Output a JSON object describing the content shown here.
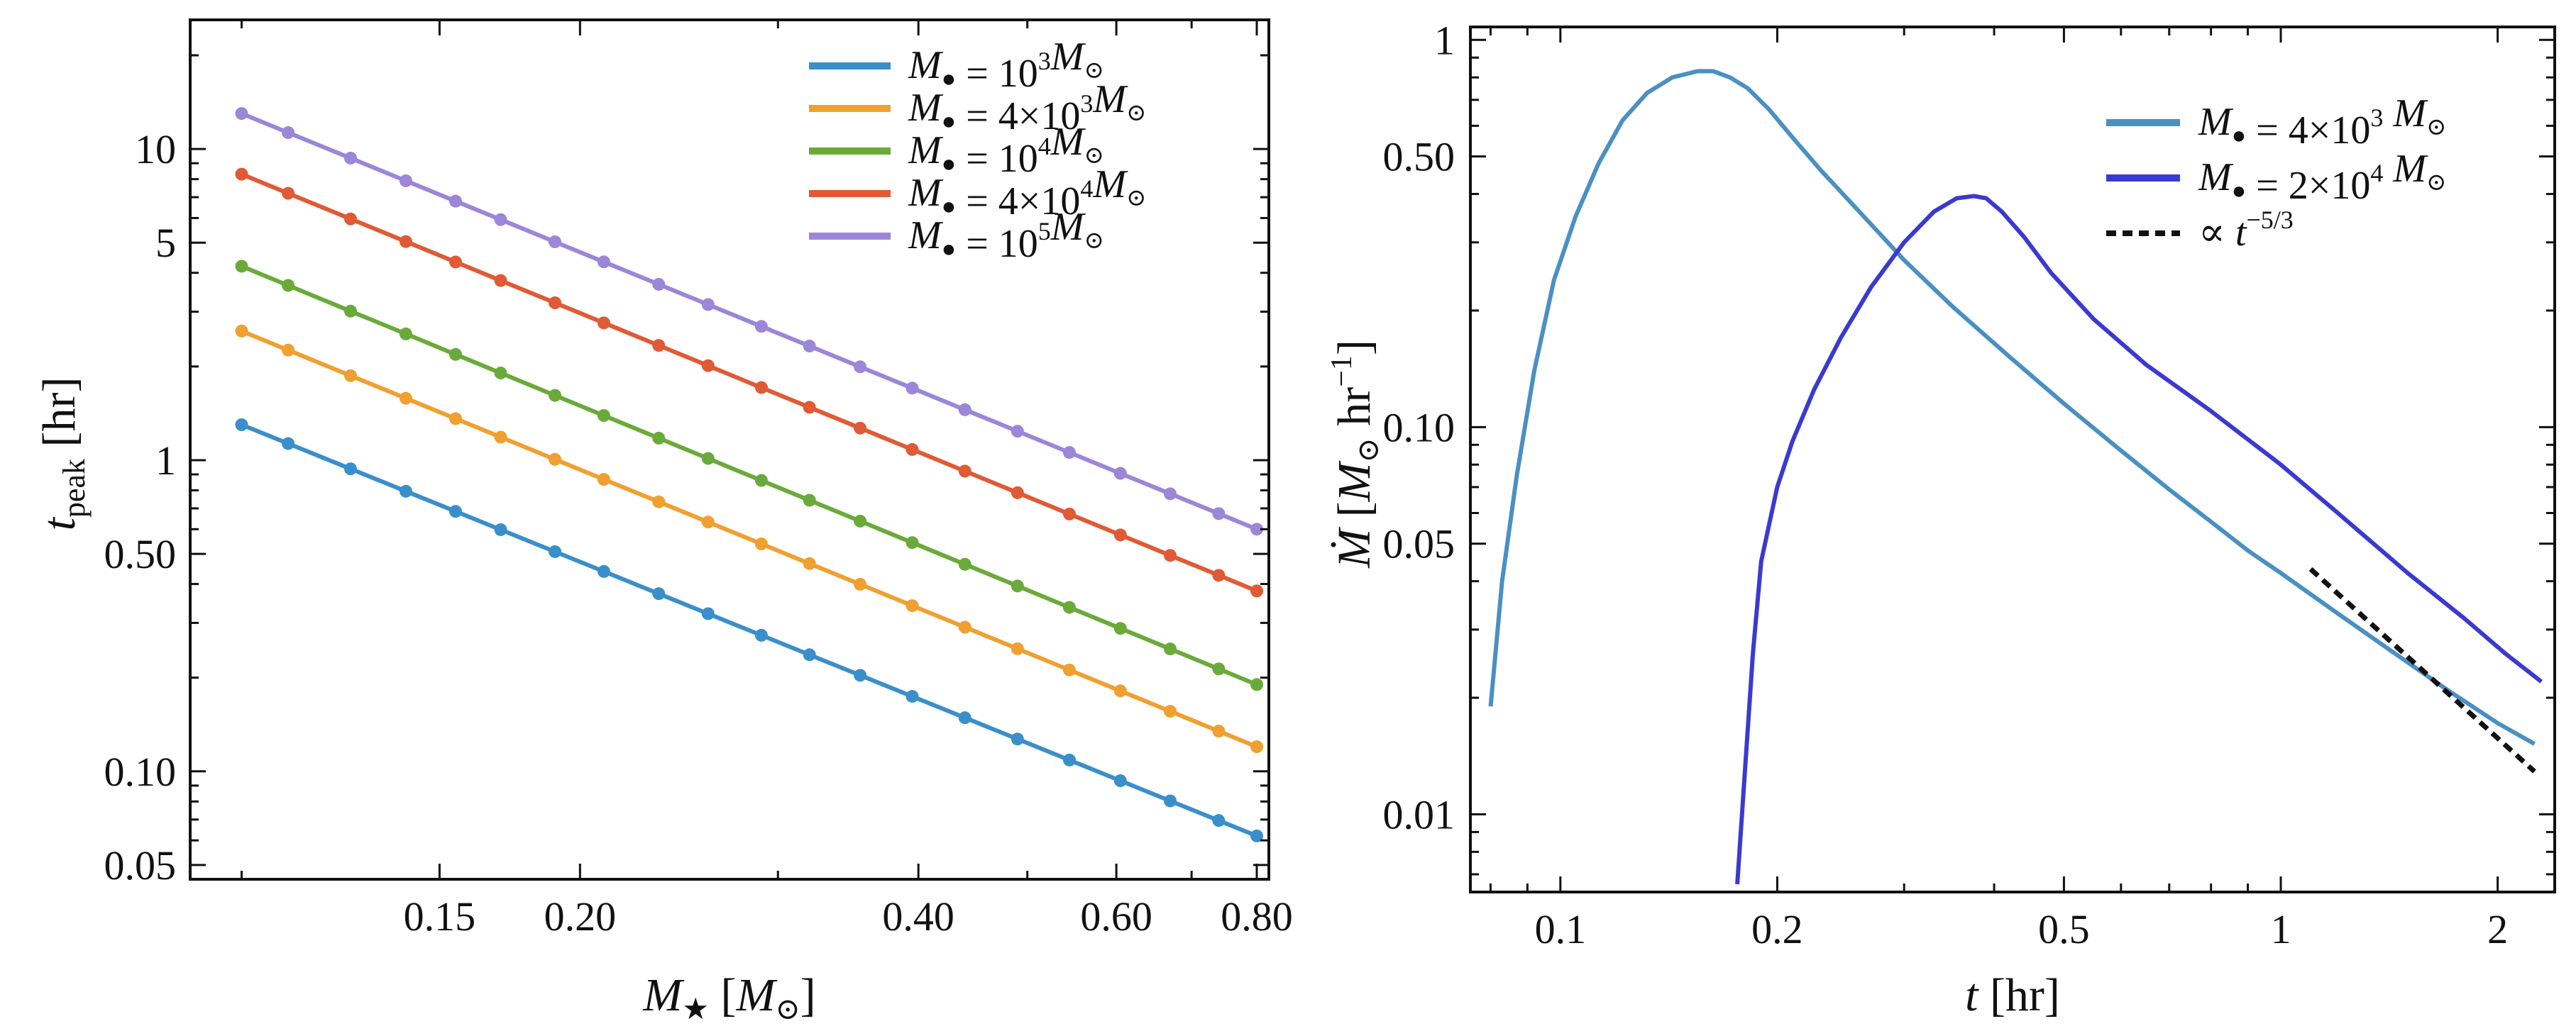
{
  "chart_data": [
    {
      "type": "line",
      "subtype": "log-log line with markers",
      "xlabel": "M★ [M⊙]",
      "ylabel": "t_peak [hr]",
      "x_scale": "log",
      "y_scale": "log",
      "xlim": [
        0.09,
        0.82
      ],
      "ylim": [
        0.045,
        26
      ],
      "x_ticks": [
        0.15,
        0.2,
        0.4,
        0.6,
        0.8
      ],
      "x_tick_labels": [
        "0.15",
        "0.20",
        "0.40",
        "0.60",
        "0.80"
      ],
      "y_ticks": [
        0.05,
        0.1,
        0.5,
        1,
        5,
        10
      ],
      "y_tick_labels": [
        "0.05",
        "0.10",
        "0.50",
        "1",
        "5",
        "10"
      ],
      "legend_position": "top-right",
      "x": [
        0.1,
        0.11,
        0.125,
        0.14,
        0.155,
        0.17,
        0.19,
        0.21,
        0.235,
        0.26,
        0.29,
        0.32,
        0.355,
        0.395,
        0.44,
        0.49,
        0.545,
        0.605,
        0.67,
        0.74,
        0.8
      ],
      "series": [
        {
          "name": "M● = 10³M⊙",
          "color": "#3a8fca",
          "t_at_0p1": 1.3,
          "t_at_0p8": 0.062
        },
        {
          "name": "M● = 4×10³M⊙",
          "color": "#f0a030",
          "t_at_0p1": 2.6,
          "t_at_0p8": 0.12
        },
        {
          "name": "M● = 10⁴M⊙",
          "color": "#6aaa3a",
          "t_at_0p1": 4.2,
          "t_at_0p8": 0.19
        },
        {
          "name": "M● = 4×10⁴M⊙",
          "color": "#e05a35",
          "t_at_0p1": 8.3,
          "t_at_0p8": 0.38
        },
        {
          "name": "M● = 10⁵M⊙",
          "color": "#9b86d8",
          "t_at_0p1": 13.0,
          "t_at_0p8": 0.6
        }
      ],
      "legend_entries": [
        {
          "pre": "M",
          "sub": "●",
          "mid": " = 10",
          "sup": "3",
          "post": "M",
          "post_sub": "⊙"
        },
        {
          "pre": "M",
          "sub": "●",
          "mid": " = 4×10",
          "sup": "3",
          "post": "M",
          "post_sub": "⊙"
        },
        {
          "pre": "M",
          "sub": "●",
          "mid": " = 10",
          "sup": "4",
          "post": "M",
          "post_sub": "⊙"
        },
        {
          "pre": "M",
          "sub": "●",
          "mid": " = 4×10",
          "sup": "4",
          "post": "M",
          "post_sub": "⊙"
        },
        {
          "pre": "M",
          "sub": "●",
          "mid": " = 10",
          "sup": "5",
          "post": "M",
          "post_sub": "⊙"
        }
      ]
    },
    {
      "type": "line",
      "subtype": "log-log line",
      "xlabel": "t [hr]",
      "ylabel": "Ṁ [M⊙ hr⁻¹]",
      "x_scale": "log",
      "y_scale": "log",
      "xlim": [
        0.075,
        2.4
      ],
      "ylim": [
        0.0063,
        1.08
      ],
      "x_ticks": [
        0.1,
        0.2,
        0.5,
        1,
        2
      ],
      "x_tick_labels": [
        "0.1",
        "0.2",
        "0.5",
        "1",
        "2"
      ],
      "y_ticks": [
        0.01,
        0.05,
        0.1,
        0.5,
        1
      ],
      "y_tick_labels": [
        "0.01",
        "0.05",
        "0.10",
        "0.50",
        "1"
      ],
      "legend_position": "top-right",
      "series": [
        {
          "name": "M● = 4×10³ M⊙",
          "color": "#4a90c2",
          "style": "solid",
          "x": [
            0.08,
            0.083,
            0.087,
            0.092,
            0.098,
            0.105,
            0.113,
            0.122,
            0.132,
            0.143,
            0.155,
            0.163,
            0.172,
            0.182,
            0.195,
            0.21,
            0.23,
            0.26,
            0.3,
            0.35,
            0.42,
            0.5,
            0.6,
            0.7,
            0.8,
            0.9,
            1.0,
            1.2,
            1.4,
            1.7,
            2.0,
            2.25
          ],
          "y": [
            0.019,
            0.04,
            0.075,
            0.14,
            0.24,
            0.35,
            0.48,
            0.62,
            0.73,
            0.8,
            0.83,
            0.83,
            0.8,
            0.75,
            0.66,
            0.56,
            0.46,
            0.36,
            0.27,
            0.205,
            0.152,
            0.115,
            0.087,
            0.069,
            0.057,
            0.048,
            0.042,
            0.033,
            0.027,
            0.021,
            0.0172,
            0.0152
          ]
        },
        {
          "name": "M● = 2×10⁴ M⊙",
          "color": "#3a3ad0",
          "style": "solid",
          "x": [
            0.176,
            0.185,
            0.19,
            0.2,
            0.21,
            0.225,
            0.245,
            0.27,
            0.3,
            0.33,
            0.355,
            0.375,
            0.39,
            0.41,
            0.44,
            0.48,
            0.55,
            0.65,
            0.8,
            1.0,
            1.2,
            1.5,
            1.8,
            2.05,
            2.3
          ],
          "y": [
            0.0066,
            0.026,
            0.045,
            0.07,
            0.092,
            0.125,
            0.17,
            0.23,
            0.3,
            0.36,
            0.39,
            0.395,
            0.39,
            0.36,
            0.31,
            0.25,
            0.19,
            0.145,
            0.11,
            0.08,
            0.06,
            0.042,
            0.032,
            0.026,
            0.022
          ]
        },
        {
          "name": "∝ t^(−5/3)",
          "color": "#111111",
          "style": "dashed",
          "x": [
            1.1,
            2.25
          ],
          "y": [
            0.043,
            0.0129
          ]
        }
      ],
      "legend_entries": [
        {
          "pre": "M",
          "sub": "●",
          "mid": " = 4×10",
          "sup": "3",
          "post": " M",
          "post_sub": "⊙"
        },
        {
          "pre": "M",
          "sub": "●",
          "mid": " = 2×10",
          "sup": "4",
          "post": " M",
          "post_sub": "⊙"
        },
        {
          "pre": "∝ t",
          "sub": "",
          "mid": "",
          "sup": "−5/3",
          "post": "",
          "post_sub": ""
        }
      ]
    }
  ]
}
